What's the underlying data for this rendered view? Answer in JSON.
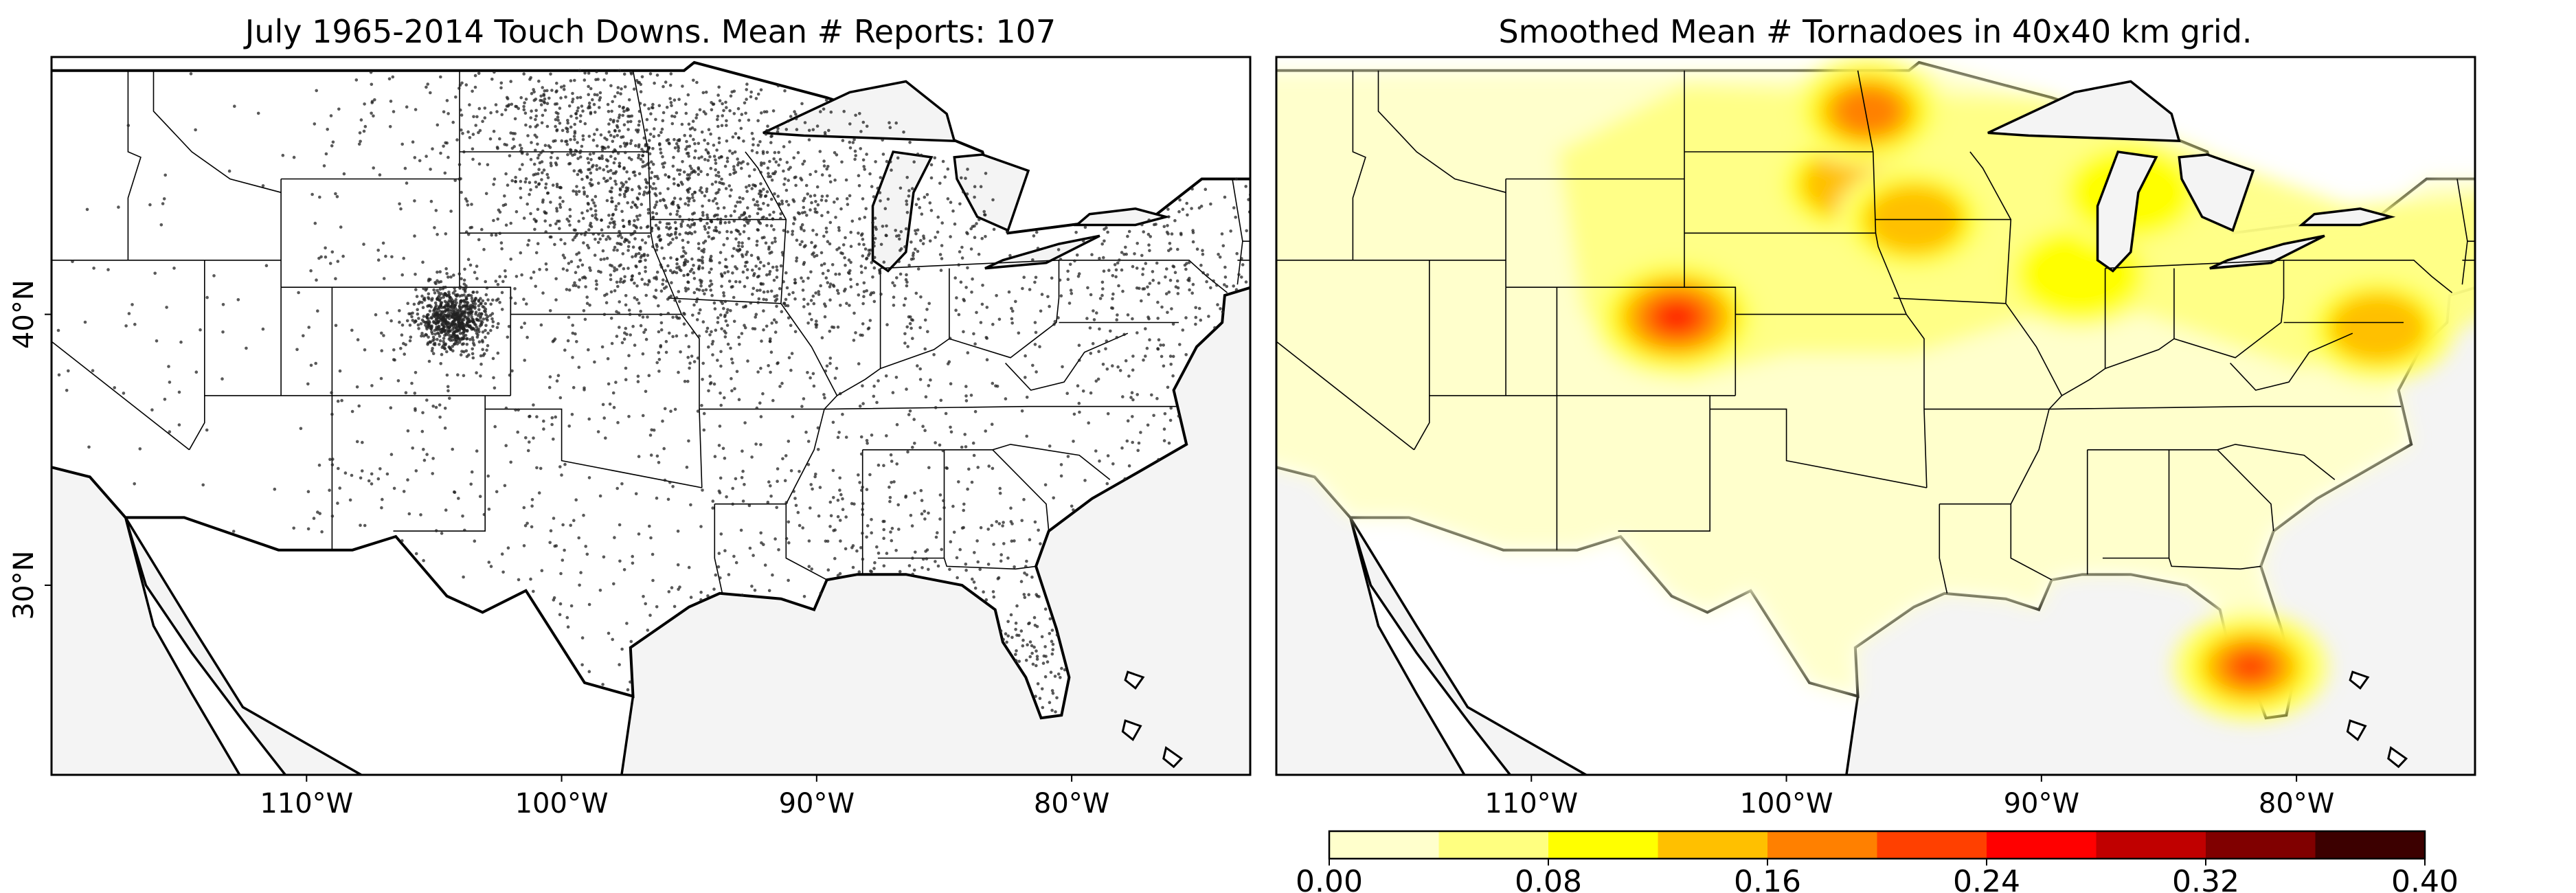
{
  "figure": {
    "left_title": "July 1965-2014 Touch Downs. Mean # Reports: 107",
    "right_title": "Smoothed Mean # Tornadoes in 40x40 km grid."
  },
  "chart_data": [
    {
      "type": "scatter",
      "title": "July 1965-2014 Touch Downs. Mean # Reports: 107",
      "xlabel": "",
      "ylabel": "",
      "x_unit": "degrees longitude",
      "y_unit": "degrees latitude",
      "xlim": [
        -120,
        -73
      ],
      "ylim": [
        23,
        49.5
      ],
      "x_ticks": [
        -110,
        -100,
        -90,
        -80
      ],
      "x_tick_labels": [
        "110°W",
        "100°W",
        "90°W",
        "80°W"
      ],
      "y_ticks": [
        30,
        40
      ],
      "y_tick_labels": [
        "30°N",
        "40°N"
      ],
      "point_color": "#222222",
      "density_clusters": [
        {
          "lon": -104.3,
          "lat": 39.9,
          "weight": 9
        },
        {
          "lon": -99.3,
          "lat": 47.0,
          "weight": 6
        },
        {
          "lon": -97.5,
          "lat": 44.5,
          "weight": 5
        },
        {
          "lon": -93.5,
          "lat": 44.5,
          "weight": 5
        },
        {
          "lon": -95.0,
          "lat": 41.5,
          "weight": 5
        },
        {
          "lon": -88.5,
          "lat": 42.5,
          "weight": 4
        },
        {
          "lon": -81.7,
          "lat": 27.2,
          "weight": 4
        },
        {
          "lon": -76.5,
          "lat": 40.5,
          "weight": 3
        },
        {
          "lon": -88.0,
          "lat": 31.5,
          "weight": 2
        }
      ]
    },
    {
      "type": "heatmap",
      "title": "Smoothed Mean # Tornadoes in 40x40 km grid.",
      "xlabel": "",
      "ylabel": "",
      "xlim": [
        -120,
        -73
      ],
      "ylim": [
        23,
        49.5
      ],
      "x_ticks": [
        -110,
        -100,
        -90,
        -80
      ],
      "x_tick_labels": [
        "110°W",
        "100°W",
        "90°W",
        "80°W"
      ],
      "colorbar": {
        "levels": [
          0.0,
          0.04,
          0.08,
          0.12,
          0.16,
          0.2,
          0.24,
          0.28,
          0.32,
          0.36,
          0.4
        ],
        "colors": [
          "#ffffcc",
          "#ffff80",
          "#ffff00",
          "#ffc000",
          "#ff8000",
          "#ff4000",
          "#ff0000",
          "#c00000",
          "#800000",
          "#3c0000"
        ],
        "tick_values": [
          0.0,
          0.08,
          0.16,
          0.24,
          0.32,
          0.4
        ],
        "tick_labels": [
          "0.00",
          "0.08",
          "0.16",
          "0.24",
          "0.32",
          "0.40"
        ]
      },
      "hotspots": [
        {
          "lon": -104.3,
          "lat": 39.9,
          "value": 0.24
        },
        {
          "lon": -96.8,
          "lat": 47.5,
          "value": 0.16
        },
        {
          "lon": -81.8,
          "lat": 27.0,
          "value": 0.2
        },
        {
          "lon": -97.5,
          "lat": 44.8,
          "value": 0.12
        },
        {
          "lon": -95.0,
          "lat": 43.5,
          "value": 0.12
        },
        {
          "lon": -88.5,
          "lat": 41.5,
          "value": 0.08
        },
        {
          "lon": -76.8,
          "lat": 39.5,
          "value": 0.12
        },
        {
          "lon": -86.5,
          "lat": 44.5,
          "value": 0.08
        }
      ]
    }
  ]
}
